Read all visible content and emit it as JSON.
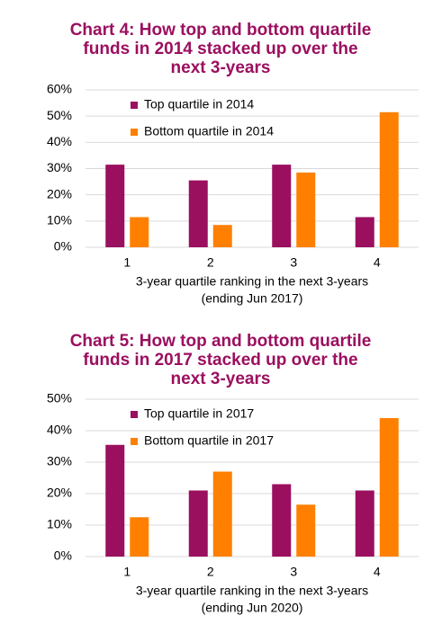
{
  "chart_data": [
    {
      "type": "bar",
      "title": [
        "Chart 4: How top and bottom quartile",
        "funds in 2014 stacked up over the",
        "next 3-years"
      ],
      "xlabel": [
        "3-year quartile ranking in the next 3-years",
        "(ending Jun 2017)"
      ],
      "categories": [
        "1",
        "2",
        "3",
        "4"
      ],
      "series": [
        {
          "name": "Top quartile in 2014",
          "color": "#9b0f5f",
          "values": [
            31.5,
            25.5,
            31.5,
            11.5
          ]
        },
        {
          "name": "Bottom quartile in 2014",
          "color": "#ff8000",
          "values": [
            11.5,
            8.5,
            28.5,
            51.5
          ]
        }
      ],
      "ylim": [
        0,
        60
      ],
      "yticks": [
        {
          "value": 0,
          "label": "0%"
        },
        {
          "value": 10,
          "label": "10%"
        },
        {
          "value": 20,
          "label": "20%"
        },
        {
          "value": 30,
          "label": "30%"
        },
        {
          "value": 40,
          "label": "40%"
        },
        {
          "value": 50,
          "label": "50%"
        },
        {
          "value": 60,
          "label": "60%"
        }
      ],
      "grid": true,
      "legend": "upper left"
    },
    {
      "type": "bar",
      "title": [
        "Chart 5: How top and bottom quartile",
        "funds in 2017 stacked up over the",
        "next 3-years"
      ],
      "xlabel": [
        "3-year quartile ranking in the next 3-years",
        "(ending Jun 2020)"
      ],
      "categories": [
        "1",
        "2",
        "3",
        "4"
      ],
      "series": [
        {
          "name": "Top quartile in 2017",
          "color": "#9b0f5f",
          "values": [
            35.5,
            21,
            23,
            21
          ]
        },
        {
          "name": "Bottom quartile in 2017",
          "color": "#ff8000",
          "values": [
            12.5,
            27,
            16.5,
            44
          ]
        }
      ],
      "ylim": [
        0,
        50
      ],
      "yticks": [
        {
          "value": 0,
          "label": "0%"
        },
        {
          "value": 10,
          "label": "10%"
        },
        {
          "value": 20,
          "label": "20%"
        },
        {
          "value": 30,
          "label": "30%"
        },
        {
          "value": 40,
          "label": "40%"
        },
        {
          "value": 50,
          "label": "50%"
        }
      ],
      "grid": true,
      "legend": "upper left"
    }
  ]
}
